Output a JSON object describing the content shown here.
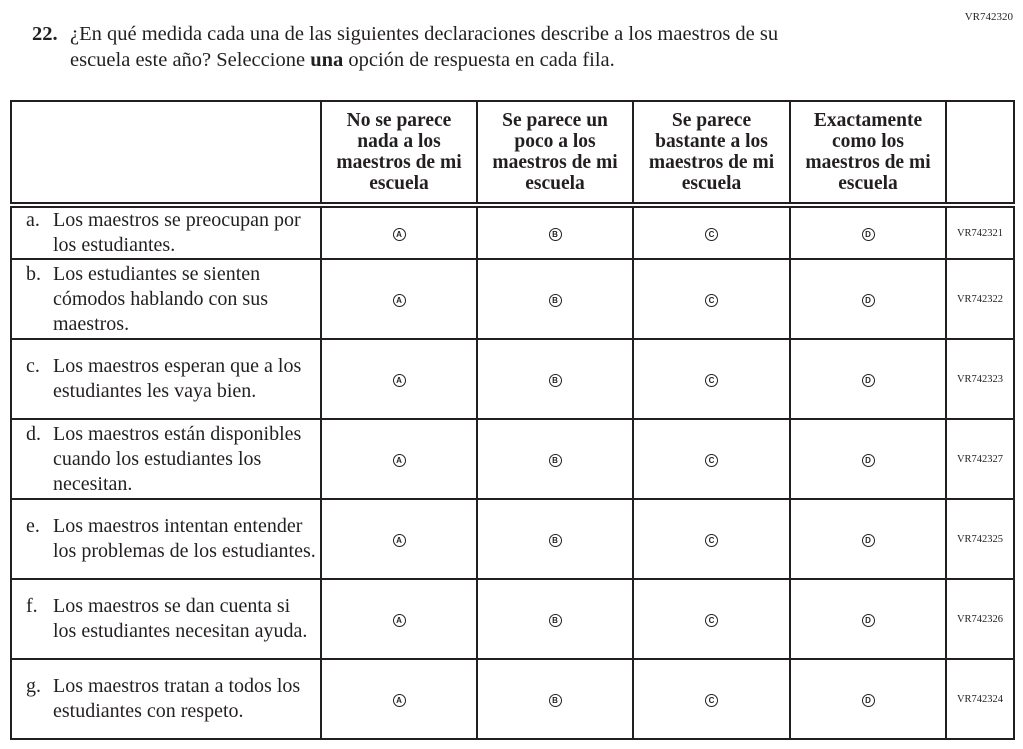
{
  "item_code": "VR742320",
  "question": {
    "number": "22.",
    "line1": "¿En qué medida cada una de las siguientes declaraciones describe a los maestros de su",
    "line2_pre": "escuela este año? Seleccione ",
    "line2_bold": "una",
    "line2_post": " opción de respuesta en cada fila."
  },
  "columns": [
    {
      "label": "No se parece nada a los maestros de mi escuela",
      "letter": "A"
    },
    {
      "label": "Se parece un poco a los maestros de mi escuela",
      "letter": "B"
    },
    {
      "label": "Se parece bastante a los maestros de mi escuela",
      "letter": "C"
    },
    {
      "label": "Exactamente como los maestros de mi escuela",
      "letter": "D"
    }
  ],
  "rows": [
    {
      "label": "a.",
      "text": "Los maestros se preocupan por los estudiantes.",
      "code": "VR742321"
    },
    {
      "label": "b.",
      "text": "Los estudiantes se sienten cómodos hablando con sus maestros.",
      "code": "VR742322"
    },
    {
      "label": "c.",
      "text": "Los maestros esperan que a los estudiantes les vaya bien.",
      "code": "VR742323"
    },
    {
      "label": "d.",
      "text": "Los maestros están disponibles cuando los estudiantes los necesitan.",
      "code": "VR742327"
    },
    {
      "label": "e.",
      "text": "Los maestros intentan entender los problemas de los estudiantes.",
      "code": "VR742325"
    },
    {
      "label": "f.",
      "text": "Los maestros se dan cuenta si los estudiantes necesitan ayuda.",
      "code": "VR742326"
    },
    {
      "label": "g.",
      "text": "Los maestros tratan a todos los estudiantes con respeto.",
      "code": "VR742324"
    }
  ]
}
